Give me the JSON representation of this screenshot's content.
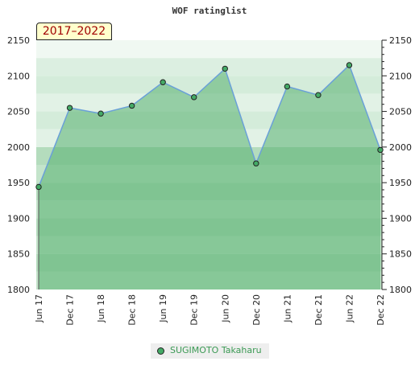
{
  "chart_data": {
    "type": "area",
    "title": "WOF ratinglist",
    "period_label": "2017–2022",
    "categories": [
      "Jun 17",
      "Dec 17",
      "Jun 18",
      "Dec 18",
      "Jun 19",
      "Dec 19",
      "Jun 20",
      "Dec 20",
      "Jun 21",
      "Dec 21",
      "Jun 22",
      "Dec 22"
    ],
    "series": [
      {
        "name": "SUGIMOTO Takaharu",
        "values": [
          1944,
          2055,
          2047,
          2058,
          2091,
          2070,
          2110,
          1977,
          2085,
          2073,
          2115,
          1996
        ]
      }
    ],
    "ylim": [
      1800,
      2150
    ],
    "yticks": [
      1800,
      1850,
      1900,
      1950,
      2000,
      2050,
      2100,
      2150
    ],
    "legend": "bottom",
    "colors": {
      "line": "#6aa0d8",
      "marker": "#44aa66",
      "fill": "#55b070"
    }
  }
}
